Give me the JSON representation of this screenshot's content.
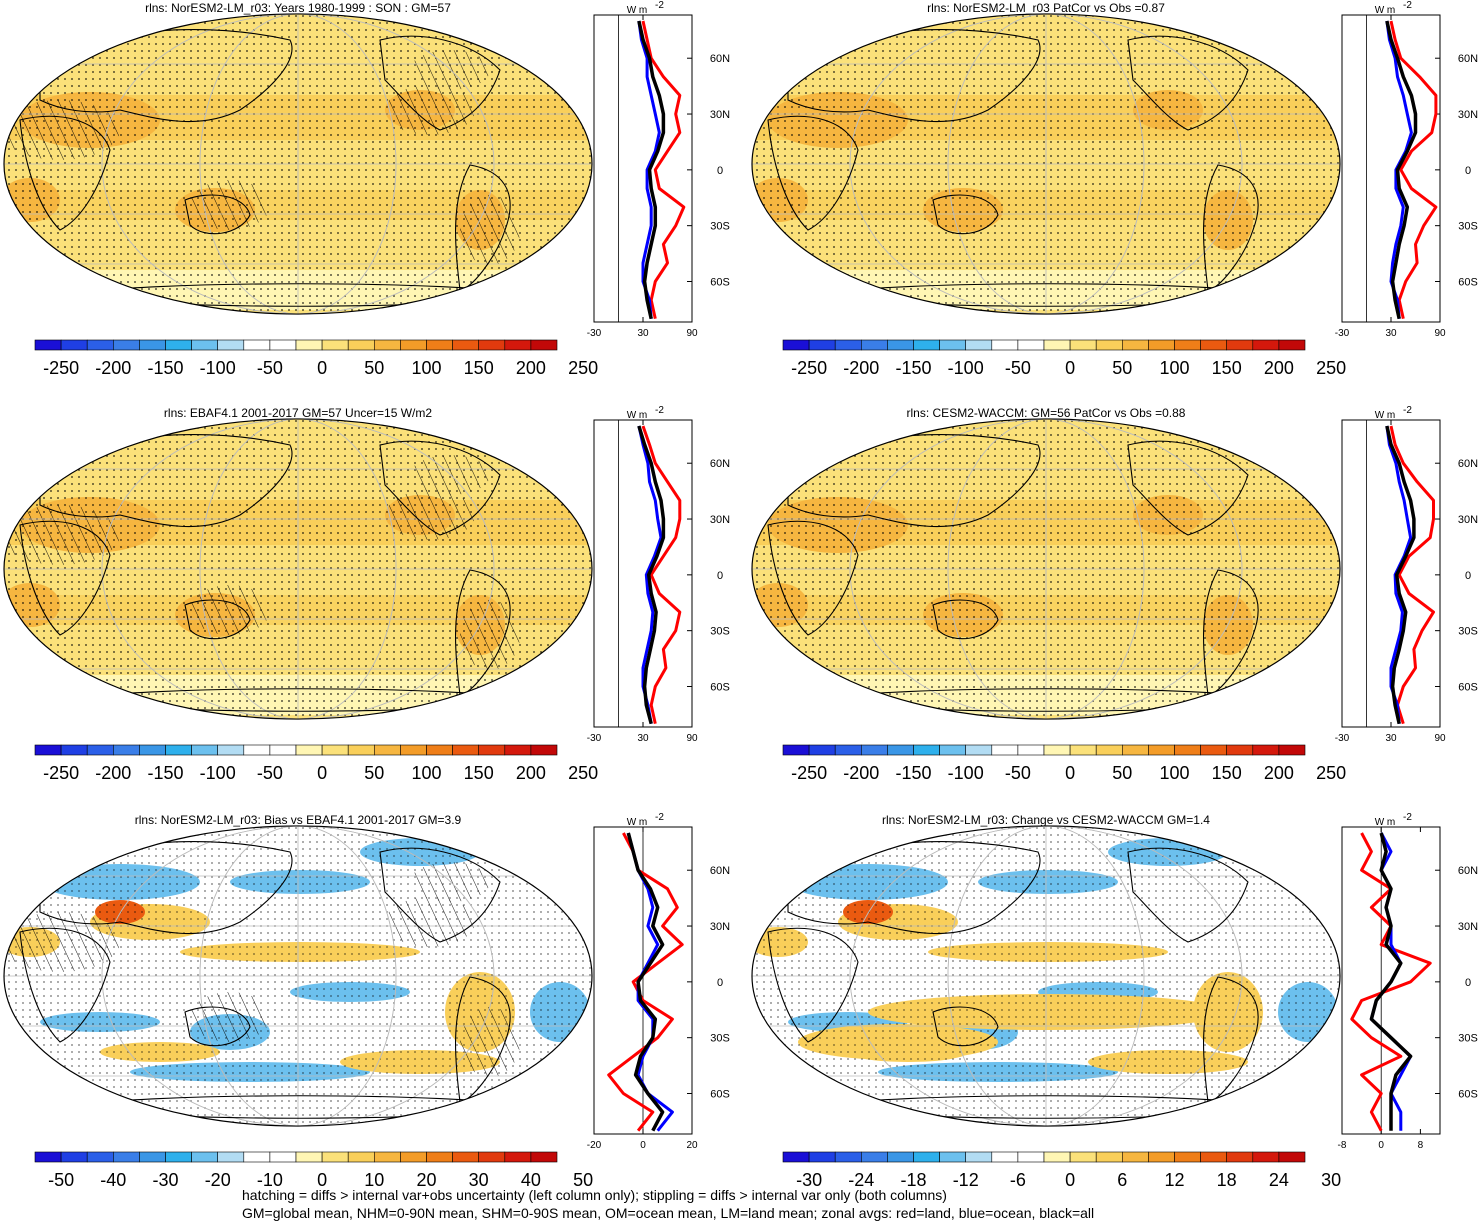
{
  "colors": {
    "red_line": "#ff0000",
    "blue_line": "#0000ff",
    "black_line": "#000000",
    "map_fill": "#fbe27f",
    "map_high": "#f6b640",
    "map_low_blue": "#64b4ea",
    "grat": "#bbbbbb"
  },
  "palette": [
    "#1a0fd6",
    "#1f3fe4",
    "#2b5fe8",
    "#3a7ee8",
    "#3a96e6",
    "#2eb0ec",
    "#6cc0ee",
    "#b2dcf3",
    "#ffffff",
    "#ffffff",
    "#fff6b4",
    "#fbe17a",
    "#f9cf5a",
    "#f6b640",
    "#f39c28",
    "#ef7e18",
    "#ea5a10",
    "#e13a0e",
    "#d4180c",
    "#c20808"
  ],
  "footer": {
    "line1": "hatching = diffs > internal var+obs uncertainty (left column only); stippling = diffs > internal var only (both columns)",
    "line2": "GM=global mean, NHM=0-90N mean, SHM=0-90S mean, OM=ocean mean, LM=land mean; zonal avgs: red=land, blue=ocean, black=all"
  },
  "panels": [
    {
      "id": "p1",
      "title": "rlns: NorESM2-LM_r03: Years 1980-1999 : SON : GM=57",
      "mode": "clim",
      "hatch": true,
      "cb_labels": [
        "-250",
        "-200",
        "-150",
        "-100",
        "-50",
        "0",
        "50",
        "100",
        "150",
        "200",
        "250"
      ],
      "zonal_unit": "W m",
      "zonal_unit_sup": "-2",
      "zonal_xticks": [
        "-30",
        "30",
        "90"
      ],
      "zonal_lats": [
        "60N",
        "30N",
        "0",
        "30S",
        "60S"
      ],
      "chart_data": {
        "type": "line",
        "xlim": [
          -30,
          90
        ],
        "y_lat": [
          80,
          70,
          60,
          50,
          40,
          30,
          20,
          10,
          0,
          -10,
          -20,
          -30,
          -40,
          -50,
          -60,
          -70,
          -80
        ],
        "series": [
          {
            "name": "land",
            "values": [
              30,
              35,
              40,
              55,
              75,
              70,
              75,
              60,
              45,
              50,
              80,
              70,
              55,
              60,
              45,
              40,
              45
            ]
          },
          {
            "name": "ocean",
            "values": [
              25,
              28,
              35,
              35,
              40,
              45,
              50,
              45,
              35,
              35,
              40,
              40,
              35,
              30,
              30,
              38,
              40
            ]
          },
          {
            "name": "all",
            "values": [
              25,
              30,
              38,
              42,
              50,
              55,
              55,
              48,
              38,
              40,
              45,
              45,
              40,
              35,
              32,
              35,
              40
            ]
          }
        ]
      }
    },
    {
      "id": "p2",
      "title": "rlns: NorESM2-LM_r03 PatCor vs Obs =0.87",
      "mode": "clim",
      "hatch": false,
      "cb_labels": [
        "-250",
        "-200",
        "-150",
        "-100",
        "-50",
        "0",
        "50",
        "100",
        "150",
        "200",
        "250"
      ],
      "zonal_unit": "W m",
      "zonal_unit_sup": "-2",
      "zonal_xticks": [
        "-30",
        "30",
        "90"
      ],
      "zonal_lats": [
        "60N",
        "30N",
        "0",
        "30S",
        "60S"
      ],
      "chart_data": {
        "type": "line",
        "xlim": [
          -30,
          90
        ],
        "y_lat": [
          80,
          70,
          60,
          50,
          40,
          30,
          20,
          10,
          0,
          -10,
          -20,
          -30,
          -40,
          -50,
          -60,
          -70,
          -80
        ],
        "series": [
          {
            "name": "land",
            "values": [
              30,
              35,
              42,
              65,
              85,
              85,
              80,
              55,
              42,
              55,
              85,
              70,
              60,
              62,
              48,
              40,
              45
            ]
          },
          {
            "name": "ocean",
            "values": [
              25,
              28,
              35,
              38,
              45,
              50,
              55,
              48,
              36,
              36,
              45,
              42,
              36,
              32,
              30,
              38,
              40
            ]
          },
          {
            "name": "all",
            "values": [
              25,
              30,
              38,
              45,
              55,
              60,
              60,
              50,
              38,
              40,
              50,
              46,
              40,
              36,
              32,
              35,
              40
            ]
          }
        ]
      }
    },
    {
      "id": "p3",
      "title": "rlns: EBAF4.1 2001-2017 GM=57 Uncer=15 W/m2",
      "mode": "clim",
      "hatch": true,
      "cb_labels": [
        "-250",
        "-200",
        "-150",
        "-100",
        "-50",
        "0",
        "50",
        "100",
        "150",
        "200",
        "250"
      ],
      "zonal_unit": "W m",
      "zonal_unit_sup": "-2",
      "zonal_xticks": [
        "-30",
        "30",
        "90"
      ],
      "zonal_lats": [
        "60N",
        "30N",
        "0",
        "30S",
        "60S"
      ],
      "chart_data": {
        "type": "line",
        "xlim": [
          -30,
          90
        ],
        "y_lat": [
          80,
          70,
          60,
          50,
          40,
          30,
          20,
          10,
          0,
          -10,
          -20,
          -30,
          -40,
          -50,
          -60,
          -70,
          -80
        ],
        "series": [
          {
            "name": "land",
            "values": [
              30,
              38,
              45,
              60,
              75,
              75,
              70,
              55,
              40,
              50,
              75,
              70,
              55,
              58,
              45,
              40,
              45
            ]
          },
          {
            "name": "ocean",
            "values": [
              25,
              30,
              36,
              38,
              45,
              48,
              52,
              44,
              34,
              36,
              42,
              40,
              35,
              30,
              30,
              36,
              40
            ]
          },
          {
            "name": "all",
            "values": [
              25,
              32,
              40,
              45,
              52,
              55,
              55,
              47,
              37,
              40,
              46,
              44,
              39,
              34,
              32,
              34,
              40
            ]
          }
        ]
      }
    },
    {
      "id": "p4",
      "title": "rlns: CESM2-WACCM: GM=56 PatCor vs Obs =0.88",
      "mode": "clim",
      "hatch": false,
      "cb_labels": [
        "-250",
        "-200",
        "-150",
        "-100",
        "-50",
        "0",
        "50",
        "100",
        "150",
        "200",
        "250"
      ],
      "zonal_unit": "W m",
      "zonal_unit_sup": "-2",
      "zonal_xticks": [
        "-30",
        "30",
        "90"
      ],
      "zonal_lats": [
        "60N",
        "30N",
        "0",
        "30S",
        "60S"
      ],
      "chart_data": {
        "type": "line",
        "xlim": [
          -30,
          90
        ],
        "y_lat": [
          80,
          70,
          60,
          50,
          40,
          30,
          20,
          10,
          0,
          -10,
          -20,
          -30,
          -40,
          -50,
          -60,
          -70,
          -80
        ],
        "series": [
          {
            "name": "land",
            "values": [
              30,
              35,
              45,
              62,
              82,
              82,
              78,
              52,
              40,
              52,
              82,
              68,
              58,
              60,
              45,
              38,
              45
            ]
          },
          {
            "name": "ocean",
            "values": [
              25,
              28,
              36,
              40,
              46,
              50,
              54,
              46,
              35,
              36,
              44,
              42,
              36,
              30,
              30,
              38,
              40
            ]
          },
          {
            "name": "all",
            "values": [
              25,
              30,
              40,
              46,
              54,
              58,
              58,
              48,
              37,
              40,
              48,
              45,
              40,
              34,
              32,
              35,
              40
            ]
          }
        ]
      }
    },
    {
      "id": "p5",
      "title": "rlns: NorESM2-LM_r03: Bias vs EBAF4.1 2001-2017  GM=3.9",
      "mode": "bias",
      "hatch": true,
      "cb_labels": [
        "-50",
        "-40",
        "-30",
        "-20",
        "-10",
        "0",
        "10",
        "20",
        "30",
        "40",
        "50"
      ],
      "zonal_unit": "W m",
      "zonal_unit_sup": "-2",
      "zonal_xticks": [
        "-20",
        "0",
        "20"
      ],
      "zonal_lats": [
        "60N",
        "30N",
        "0",
        "30S",
        "60S"
      ],
      "chart_data": {
        "type": "line",
        "xlim": [
          -20,
          20
        ],
        "y_lat": [
          80,
          70,
          60,
          50,
          40,
          30,
          20,
          10,
          0,
          -10,
          -20,
          -30,
          -40,
          -50,
          -60,
          -70,
          -80
        ],
        "series": [
          {
            "name": "land",
            "values": [
              -8,
              -4,
              -2,
              10,
              14,
              8,
              16,
              6,
              -4,
              0,
              12,
              6,
              -4,
              -14,
              -8,
              4,
              -2
            ]
          },
          {
            "name": "ocean",
            "values": [
              -6,
              -4,
              -2,
              2,
              4,
              2,
              6,
              2,
              -2,
              -2,
              4,
              4,
              0,
              -2,
              2,
              12,
              6
            ]
          },
          {
            "name": "all",
            "values": [
              -6,
              -4,
              -2,
              3,
              6,
              4,
              8,
              3,
              -2,
              -1,
              5,
              4,
              -1,
              -3,
              2,
              8,
              4
            ]
          }
        ]
      }
    },
    {
      "id": "p6",
      "title": "rlns: NorESM2-LM_r03: Change vs CESM2-WACCM GM=1.4",
      "mode": "diff",
      "hatch": false,
      "cb_labels": [
        "-30",
        "-24",
        "-18",
        "-12",
        "-6",
        "0",
        "6",
        "12",
        "18",
        "24",
        "30"
      ],
      "zonal_unit": "W m",
      "zonal_unit_sup": "-2",
      "zonal_xticks": [
        "-8",
        "0",
        "8"
      ],
      "zonal_lats": [
        "60N",
        "30N",
        "0",
        "30S",
        "60S"
      ],
      "chart_data": {
        "type": "line",
        "xlim": [
          -8,
          12
        ],
        "y_lat": [
          80,
          70,
          60,
          50,
          40,
          30,
          20,
          10,
          0,
          -10,
          -20,
          -30,
          -40,
          -50,
          -60,
          -70,
          -80
        ],
        "series": [
          {
            "name": "land",
            "values": [
              -4,
              -2,
              -4,
              2,
              -2,
              2,
              0,
              10,
              6,
              -4,
              -6,
              -2,
              4,
              -4,
              0,
              -2,
              0
            ]
          },
          {
            "name": "ocean",
            "values": [
              0,
              2,
              0,
              2,
              1,
              2,
              2,
              4,
              2,
              -1,
              -2,
              2,
              6,
              4,
              2,
              4,
              4
            ]
          },
          {
            "name": "all",
            "values": [
              0,
              1,
              0,
              2,
              1,
              2,
              1,
              4,
              2,
              -1,
              -2,
              2,
              6,
              3,
              2,
              2,
              2
            ]
          }
        ]
      }
    }
  ]
}
